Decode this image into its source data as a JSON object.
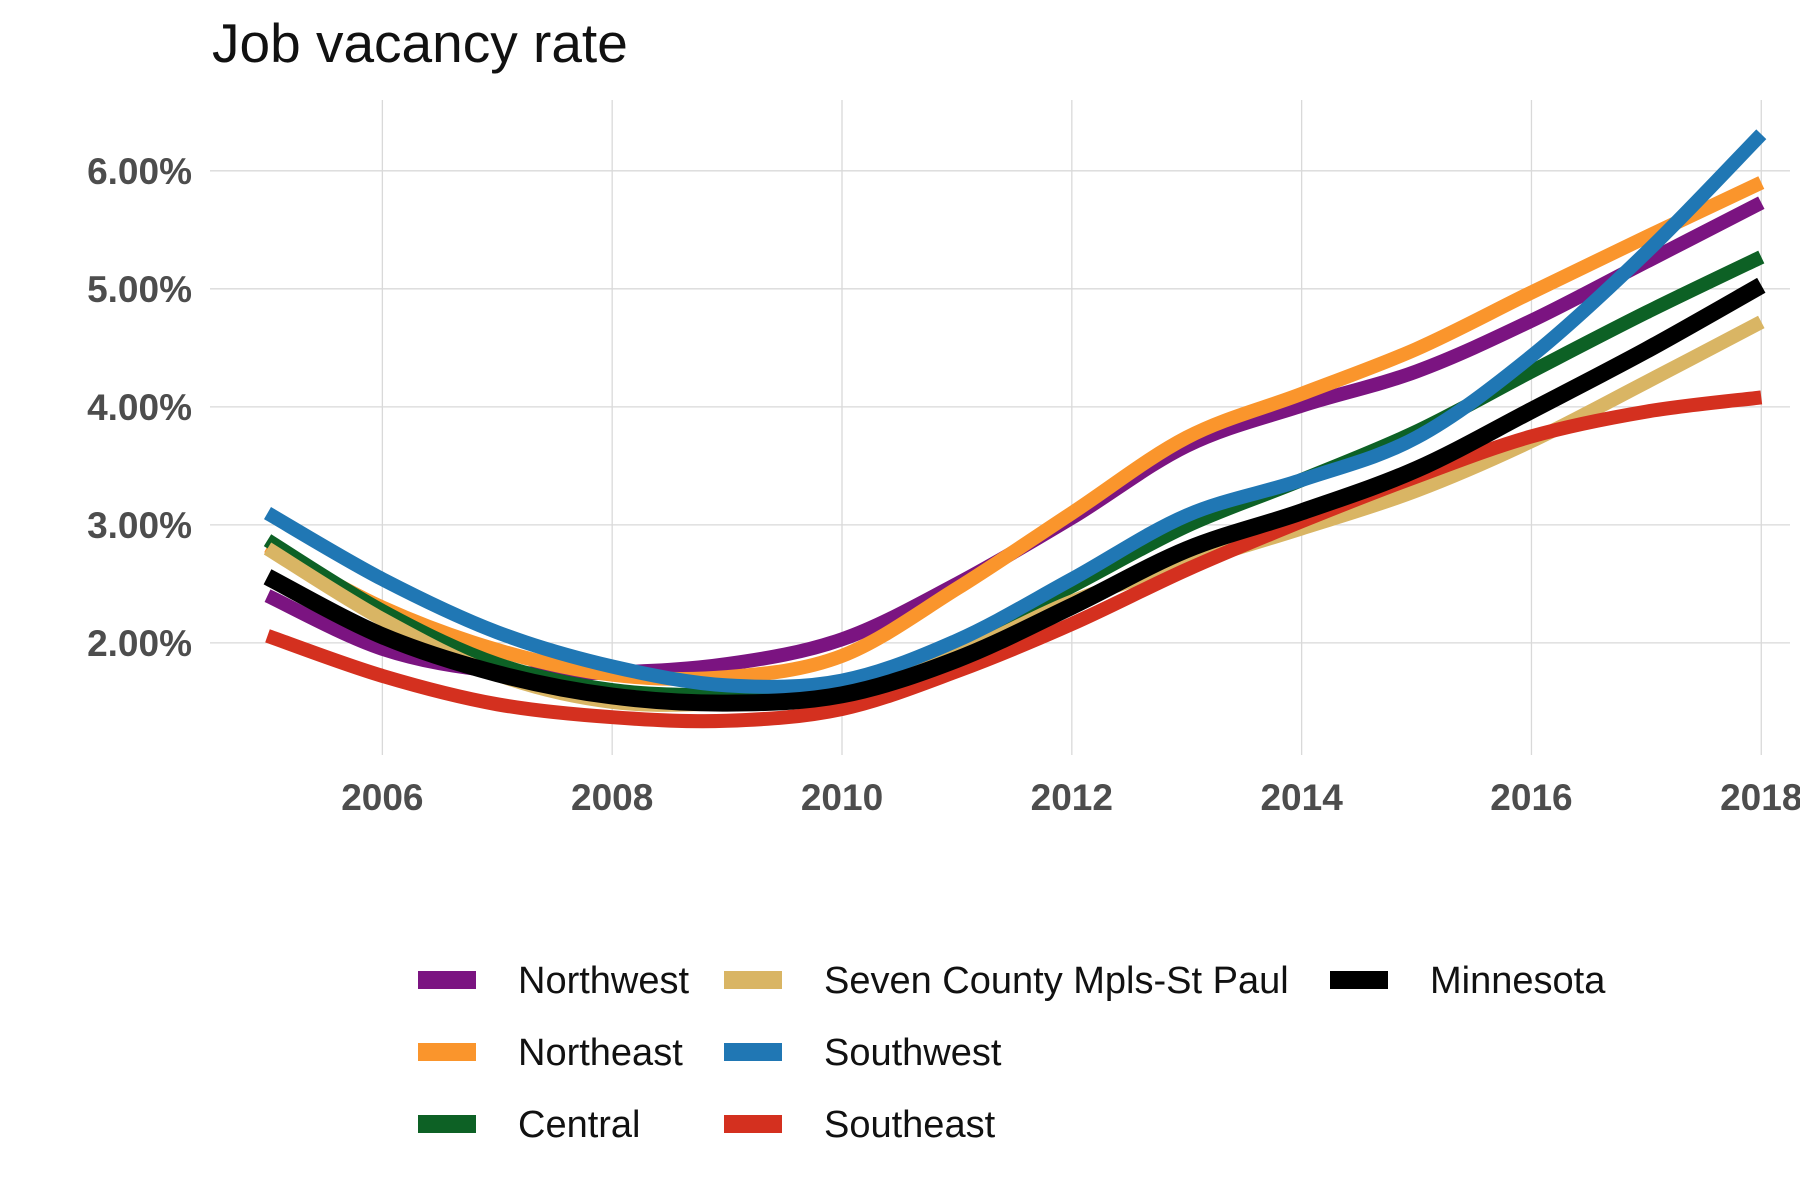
{
  "chart_data": {
    "type": "line",
    "title": "Job vacancy rate",
    "xlabel": "",
    "ylabel": "",
    "x": [
      2005,
      2006,
      2007,
      2008,
      2009,
      2010,
      2011,
      2012,
      2013,
      2014,
      2015,
      2016,
      2017,
      2018
    ],
    "xlim": [
      2004.5,
      2018.25
    ],
    "ylim": [
      1.05,
      6.6
    ],
    "x_ticks": [
      2006,
      2008,
      2010,
      2012,
      2014,
      2016,
      2018
    ],
    "x_tick_labels": [
      "2006",
      "2008",
      "2010",
      "2012",
      "2014",
      "2016",
      "2018"
    ],
    "y_ticks": [
      2,
      3,
      4,
      5,
      6
    ],
    "y_tick_labels": [
      "2.00%",
      "3.00%",
      "4.00%",
      "5.00%",
      "6.00%"
    ],
    "grid": true,
    "legend_position": "bottom",
    "series": [
      {
        "name": "Northwest",
        "color": "#7b1481",
        "values": [
          2.4,
          1.95,
          1.76,
          1.75,
          1.82,
          2.03,
          2.5,
          3.06,
          3.67,
          4.01,
          4.3,
          4.73,
          5.23,
          5.73
        ]
      },
      {
        "name": "Northeast",
        "color": "#fa952c",
        "values": [
          2.82,
          2.3,
          1.94,
          1.73,
          1.71,
          1.89,
          2.46,
          3.1,
          3.74,
          4.11,
          4.49,
          4.97,
          5.44,
          5.9
        ]
      },
      {
        "name": "Central",
        "color": "#0d6125",
        "values": [
          2.87,
          2.27,
          1.82,
          1.6,
          1.56,
          1.64,
          1.98,
          2.48,
          2.99,
          3.38,
          3.79,
          4.3,
          4.8,
          5.27
        ]
      },
      {
        "name": "Seven County Mpls-St Paul",
        "color": "#d9b564",
        "values": [
          2.8,
          2.2,
          1.73,
          1.5,
          1.49,
          1.58,
          1.9,
          2.35,
          2.67,
          2.97,
          3.29,
          3.71,
          4.21,
          4.72
        ]
      },
      {
        "name": "Southwest",
        "color": "#2077b4",
        "values": [
          3.1,
          2.54,
          2.09,
          1.8,
          1.64,
          1.68,
          2.02,
          2.54,
          3.08,
          3.38,
          3.74,
          4.43,
          5.31,
          6.31
        ]
      },
      {
        "name": "Southeast",
        "color": "#d4301f",
        "values": [
          2.06,
          1.72,
          1.48,
          1.37,
          1.34,
          1.44,
          1.76,
          2.16,
          2.62,
          3.03,
          3.41,
          3.75,
          3.96,
          4.08
        ]
      },
      {
        "name": "Minnesota",
        "color": "#000000",
        "values": [
          2.56,
          2.06,
          1.74,
          1.55,
          1.49,
          1.56,
          1.86,
          2.31,
          2.79,
          3.11,
          3.47,
          3.97,
          4.48,
          5.03
        ]
      }
    ]
  }
}
